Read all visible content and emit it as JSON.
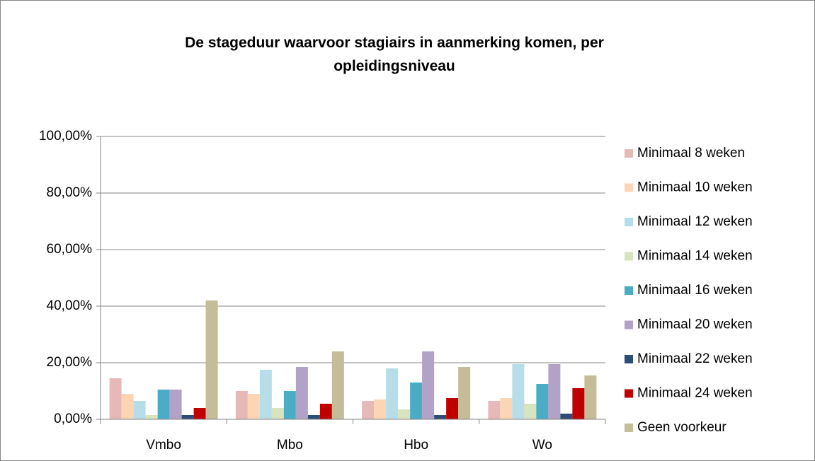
{
  "chart_data": {
    "type": "bar",
    "title": "De stageduur waarvoor stagiairs in aanmerking komen, per opleidingsniveau",
    "categories": [
      "Vmbo",
      "Mbo",
      "Hbo",
      "Wo"
    ],
    "series": [
      {
        "name": "Minimaal 8 weken",
        "color": "#e6b9b8",
        "values": [
          14.5,
          10,
          6.5,
          6.5
        ]
      },
      {
        "name": "Minimaal 10 weken",
        "color": "#fcd5b5",
        "values": [
          9,
          9,
          7,
          7.5
        ]
      },
      {
        "name": "Minimaal 12 weken",
        "color": "#b7dee8",
        "values": [
          6.5,
          17.5,
          18,
          19.5
        ]
      },
      {
        "name": "Minimaal 14 weken",
        "color": "#d7e4bd",
        "values": [
          1.5,
          4,
          3.5,
          5.5
        ]
      },
      {
        "name": "Minimaal 16 weken",
        "color": "#4bacc6",
        "values": [
          10.5,
          10,
          13,
          12.5
        ]
      },
      {
        "name": "Minimaal 20 weken",
        "color": "#b3a2c7",
        "values": [
          10.5,
          18.5,
          24,
          19.5
        ]
      },
      {
        "name": "Minimaal 22 weken",
        "color": "#2c4d75",
        "values": [
          1.5,
          1.5,
          1.5,
          2
        ]
      },
      {
        "name": "Minimaal 24 weken",
        "color": "#c00000",
        "values": [
          4,
          5.5,
          7.5,
          11
        ]
      },
      {
        "name": "Geen voorkeur",
        "color": "#c4bd97",
        "values": [
          42,
          24,
          18.5,
          15.5
        ]
      }
    ],
    "ylim": [
      0,
      100
    ],
    "yticks": [
      {
        "value": 0,
        "label": "0,00%"
      },
      {
        "value": 20,
        "label": "20,00%"
      },
      {
        "value": 40,
        "label": "40,00%"
      },
      {
        "value": 60,
        "label": "60,00%"
      },
      {
        "value": 80,
        "label": "80,00%"
      },
      {
        "value": 100,
        "label": "100,00%"
      }
    ],
    "grid": true,
    "legend": "right"
  }
}
